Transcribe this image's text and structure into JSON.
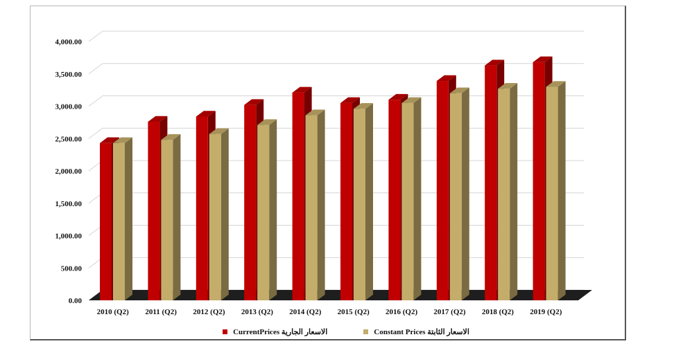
{
  "chart_data": {
    "type": "bar",
    "title": "",
    "xlabel": "",
    "ylabel": "",
    "categories": [
      "2010 (Q2)",
      "2011 (Q2)",
      "2012 (Q2)",
      "2013 (Q2)",
      "2014 (Q2)",
      "2015 (Q2)",
      "2016 (Q2)",
      "2017 (Q2)",
      "2018 (Q2)",
      "2019 (Q2)"
    ],
    "series": [
      {
        "name": "CurrentPrices   الاسعار الجارية",
        "color": "#c00000",
        "values": [
          2430,
          2760,
          2840,
          3020,
          3210,
          3050,
          3100,
          3390,
          3630,
          3680
        ]
      },
      {
        "name": "Constant Prices   الاسعار الثابتة",
        "color": "#c4ad6a",
        "values": [
          2430,
          2480,
          2570,
          2710,
          2860,
          2960,
          3050,
          3200,
          3270,
          3300
        ]
      }
    ],
    "ylim": [
      0,
      4000
    ],
    "yticks": [
      "0.00",
      "500.00",
      "1,000.00",
      "1,500.00",
      "2,000.00",
      "2,500.00",
      "3,000.00",
      "3,500.00",
      "4,000.00"
    ],
    "grid": true,
    "legend_position": "bottom",
    "style": "3d-clustered-column"
  }
}
